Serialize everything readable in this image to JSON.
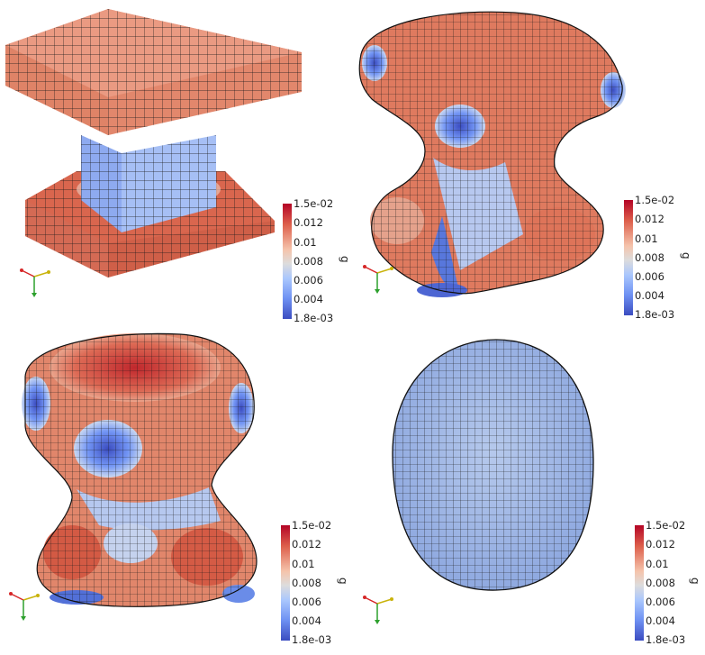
{
  "colorbar": {
    "variable": "g",
    "max_label": "1.5e-02",
    "min_label": "1.8e-03",
    "ticks": [
      "0.012",
      "0.01",
      "0.008",
      "0.006",
      "0.004"
    ],
    "gradient_colors": [
      "#b40426",
      "#dd5f4b",
      "#f5c4ac",
      "#dddcdc",
      "#aac7fd",
      "#6f92f3",
      "#3b4cc0"
    ]
  },
  "panels": [
    {
      "name": "top-left",
      "shape": "undeformed-block",
      "axes_triad": true
    },
    {
      "name": "top-right",
      "shape": "deformed-block",
      "axes_triad": true
    },
    {
      "name": "bottom-left",
      "shape": "rounded-block",
      "axes_triad": true
    },
    {
      "name": "bottom-right",
      "shape": "ellipsoid",
      "axes_triad": true
    }
  ]
}
